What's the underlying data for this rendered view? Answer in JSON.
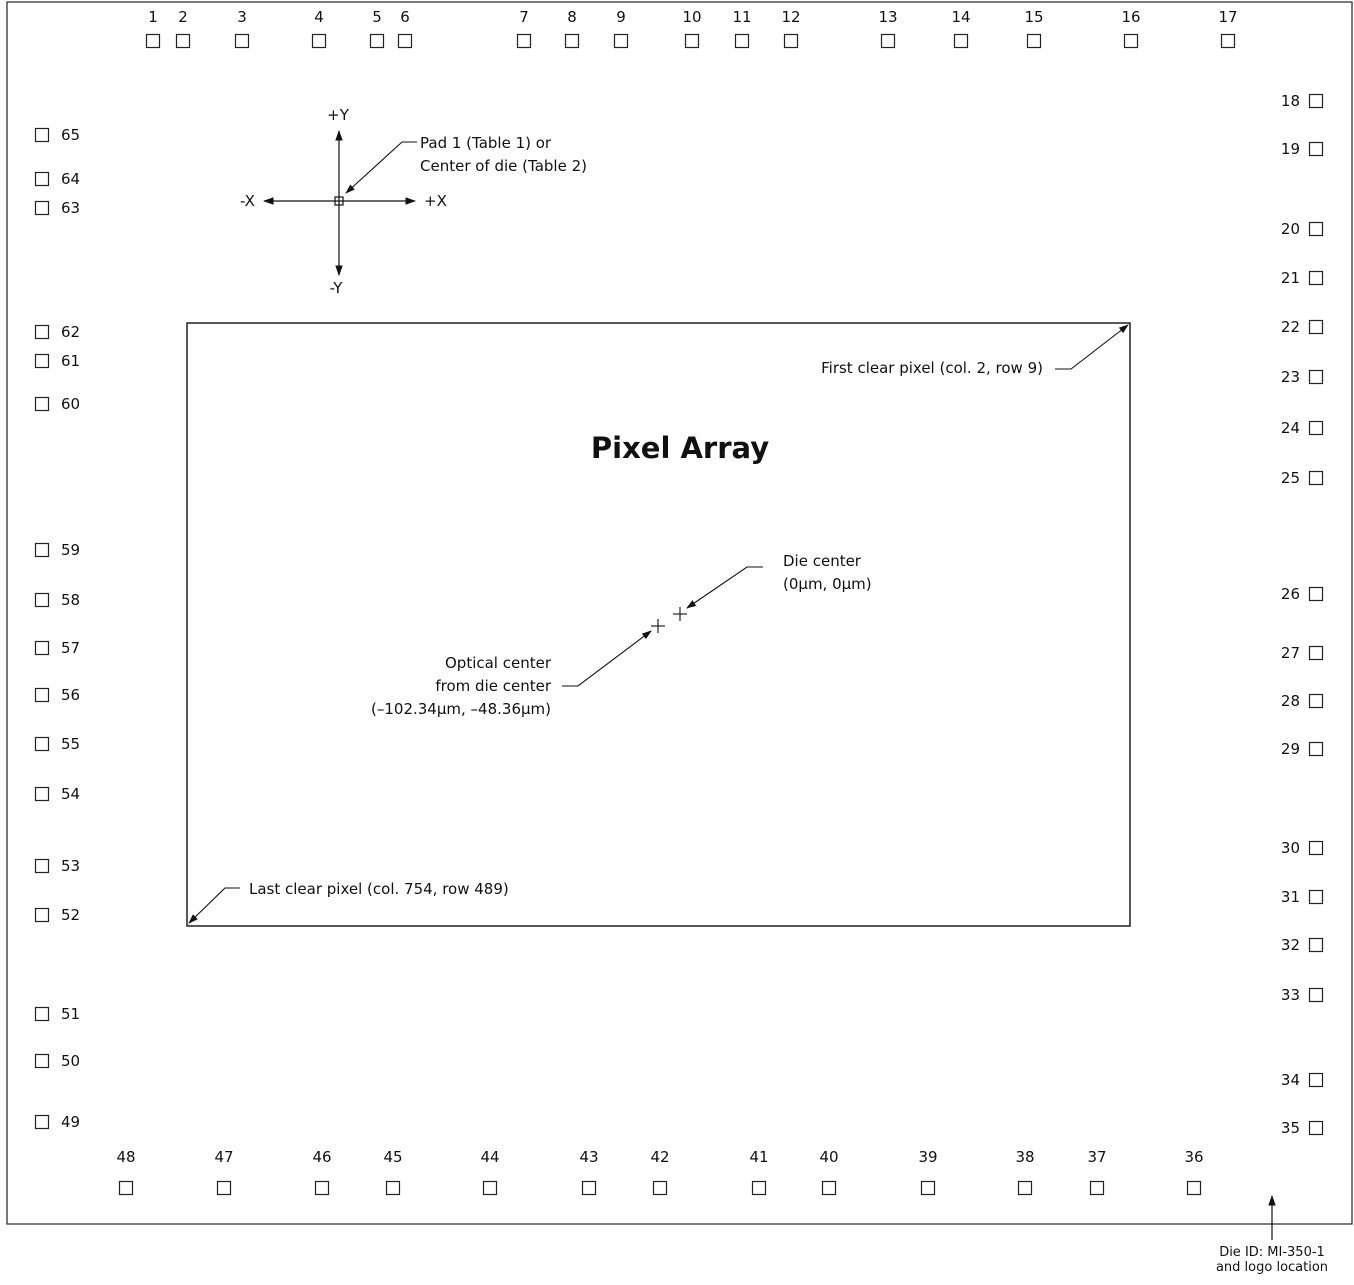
{
  "title": "Pixel Array",
  "pads": {
    "top": [
      "1",
      "2",
      "3",
      "4",
      "5",
      "6",
      "7",
      "8",
      "9",
      "10",
      "11",
      "12",
      "13",
      "14",
      "15",
      "16",
      "17"
    ],
    "right": [
      "18",
      "19",
      "20",
      "21",
      "22",
      "23",
      "24",
      "25",
      "26",
      "27",
      "28",
      "29",
      "30",
      "31",
      "32",
      "33",
      "34",
      "35"
    ],
    "bottom": [
      "48",
      "47",
      "46",
      "45",
      "44",
      "43",
      "42",
      "41",
      "40",
      "39",
      "38",
      "37",
      "36"
    ],
    "left": [
      "65",
      "64",
      "63",
      "62",
      "61",
      "60",
      "59",
      "58",
      "57",
      "56",
      "55",
      "54",
      "53",
      "52",
      "51",
      "50",
      "49"
    ]
  },
  "axes": {
    "plus_y": "+Y",
    "minus_y": "-Y",
    "plus_x": "+X",
    "minus_x": "-X",
    "pad_note_line1": "Pad 1 (Table 1) or",
    "pad_note_line2": "Center of die (Table 2)"
  },
  "annotations": {
    "first_clear": "First clear pixel (col. 2, row 9)",
    "last_clear": "Last clear pixel (col. 754, row 489)",
    "die_center_line1": "Die center",
    "die_center_line2": "(0µm, 0µm)",
    "optical_line1": "Optical center",
    "optical_line2": "from die center",
    "optical_line3": "(–102.34µm, –48.36µm)"
  },
  "footer": {
    "line1": "Die ID: MI-350-1",
    "line2": "and logo location"
  }
}
